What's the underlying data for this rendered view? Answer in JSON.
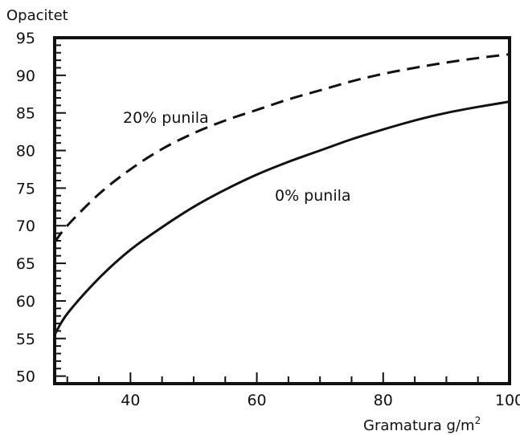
{
  "chart_data": {
    "type": "line",
    "ylabel": "Opacitet",
    "xlabel": "Gramatura g/m",
    "xlabel_superscript": "2",
    "xlim": [
      28,
      100
    ],
    "ylim": [
      49,
      95
    ],
    "xticks": [
      40,
      60,
      80,
      100
    ],
    "xticks_minor": [
      30,
      35,
      40,
      45,
      50,
      55,
      60,
      65,
      70,
      75,
      80,
      85,
      90,
      95,
      100
    ],
    "yticks": [
      50,
      55,
      60,
      65,
      70,
      75,
      80,
      85,
      90,
      95
    ],
    "grid": false,
    "series": [
      {
        "name": "20% punila",
        "style": "dashed",
        "color": "#111111",
        "x": [
          28,
          30,
          35,
          40,
          45,
          50,
          55,
          60,
          65,
          70,
          75,
          80,
          85,
          90,
          95,
          100
        ],
        "y": [
          67.8,
          70.0,
          74.2,
          77.5,
          80.2,
          82.3,
          84.0,
          85.4,
          86.8,
          88.0,
          89.2,
          90.2,
          91.0,
          91.7,
          92.3,
          92.8
        ]
      },
      {
        "name": "0% punila",
        "style": "solid",
        "color": "#111111",
        "x": [
          28,
          30,
          35,
          40,
          45,
          50,
          55,
          60,
          65,
          70,
          75,
          80,
          85,
          90,
          95,
          100
        ],
        "y": [
          55.5,
          58.3,
          63.0,
          66.8,
          69.8,
          72.5,
          74.8,
          76.8,
          78.5,
          80.0,
          81.5,
          82.8,
          84.0,
          85.0,
          85.8,
          86.5
        ]
      }
    ]
  }
}
